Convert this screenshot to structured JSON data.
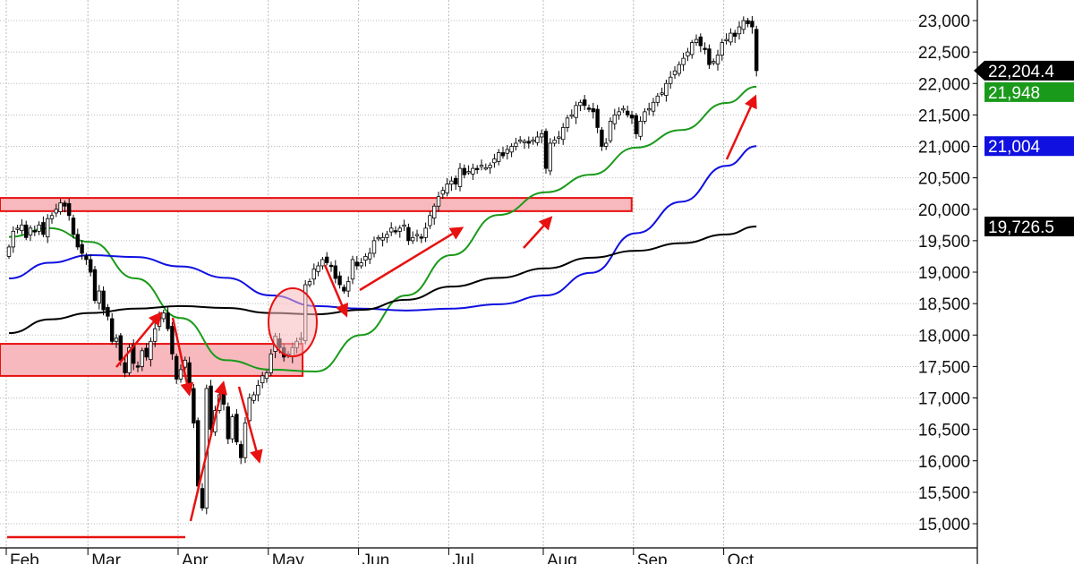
{
  "chart_data": {
    "type": "candlestick",
    "title": "",
    "xlabel": "",
    "ylabel": "",
    "ylim": [
      14800,
      23300
    ],
    "grid": true,
    "y_ticks": [
      "15,000",
      "15,500",
      "16,000",
      "16,500",
      "17,000",
      "17,500",
      "18,000",
      "18,500",
      "19,000",
      "19,500",
      "20,000",
      "20,500",
      "21,000",
      "21,500",
      "22,000",
      "22,500",
      "23,000"
    ],
    "y_tick_values": [
      15000,
      15500,
      16000,
      16500,
      17000,
      17500,
      18000,
      18500,
      19000,
      19500,
      20000,
      20500,
      21000,
      21500,
      22000,
      22500,
      23000
    ],
    "x_tick_labels": [
      "Feb",
      "Mar",
      "Apr",
      "May",
      "Jun",
      "Jul",
      "Aug",
      "Sep",
      "Oct"
    ],
    "closes_by_month": {
      "Feb": [
        19400,
        19650,
        19700,
        19750,
        19550,
        19700,
        19650,
        19750,
        19600,
        19850,
        19900,
        20000,
        20100,
        20050,
        19900,
        19600,
        19400,
        19300,
        19200
      ],
      "Mar": [
        19000,
        18550,
        18700,
        18400,
        18300,
        17900,
        17950,
        17600,
        17400,
        17800,
        17550,
        17500,
        17750,
        17650,
        17900,
        18100,
        18300,
        18350,
        18100,
        17700,
        17300
      ],
      "Apr": [
        17450,
        17600,
        17150,
        16600,
        15600,
        15250,
        17150,
        16500,
        16800,
        17050,
        16900,
        16350,
        16700,
        16300,
        16050,
        16600,
        17000,
        17050,
        17200,
        17350,
        17400
      ],
      "May": [
        17700,
        17980,
        17800,
        17650,
        17700,
        17800,
        17900,
        17950,
        18800,
        18850,
        19050,
        19100,
        19200,
        19150,
        19100,
        18900,
        18800,
        18700,
        18850,
        19200,
        19100
      ],
      "Jun": [
        19150,
        19250,
        19300,
        19500,
        19550,
        19550,
        19600,
        19700,
        19650,
        19700,
        19750,
        19500,
        19550,
        19600,
        19550,
        19700,
        19900,
        20050,
        20200,
        20300,
        20400
      ],
      "Jul": [
        20450,
        20400,
        20650,
        20550,
        20600,
        20650,
        20640,
        20700,
        20660,
        20700,
        20800,
        20900,
        20850,
        20950,
        21000,
        21050,
        21100,
        21080,
        21050,
        21100,
        21150,
        21200
      ],
      "Aug": [
        20650,
        21050,
        21100,
        21150,
        21300,
        21450,
        21500,
        21650,
        21700,
        21650,
        21600,
        21550,
        21300,
        21000,
        21050,
        21400,
        21500,
        21550,
        21600,
        21500,
        21450
      ],
      "Sep": [
        21200,
        21400,
        21550,
        21600,
        21700,
        21800,
        21850,
        22000,
        22100,
        22200,
        22300,
        22400,
        22500,
        22650,
        22700,
        22600,
        22550,
        22300,
        22350,
        22450,
        22650
      ],
      "Oct": [
        22700,
        22800,
        22750,
        22900,
        23000,
        22950,
        22900,
        22204.4
      ]
    },
    "moving_averages": [
      {
        "color": "#1a9a1a",
        "last_label": "21,948",
        "last_value": 21948,
        "values_by_month": {
          "Feb": [
            19560,
            19700
          ],
          "Mar": [
            19480,
            18900
          ],
          "Apr": [
            18270,
            17600
          ],
          "May": [
            17450,
            17420
          ],
          "Jun": [
            18000,
            18630
          ],
          "Jul": [
            19270,
            19910
          ],
          "Aug": [
            20270,
            20550
          ],
          "Sep": [
            20980,
            21260
          ],
          "Oct": [
            21690,
            21948
          ]
        }
      },
      {
        "color": "#1010e0",
        "last_label": "21,004",
        "last_value": 21004,
        "values_by_month": {
          "Feb": [
            18900,
            19150
          ],
          "Mar": [
            19270,
            19240
          ],
          "Apr": [
            19090,
            18910
          ],
          "May": [
            18630,
            18460
          ],
          "Jun": [
            18420,
            18390
          ],
          "Jul": [
            18420,
            18490
          ],
          "Aug": [
            18630,
            18990
          ],
          "Sep": [
            19620,
            20120
          ],
          "Oct": [
            20690,
            21004
          ]
        }
      },
      {
        "color": "#000000",
        "last_label": "19,726.5",
        "last_value": 19726.5,
        "values_by_month": {
          "Feb": [
            18030,
            18250
          ],
          "Mar": [
            18350,
            18420
          ],
          "Apr": [
            18460,
            18430
          ],
          "May": [
            18350,
            18330
          ],
          "Jun": [
            18400,
            18560
          ],
          "Jul": [
            18770,
            18910
          ],
          "Aug": [
            19060,
            19230
          ],
          "Sep": [
            19340,
            19460
          ],
          "Oct": [
            19600,
            19726.5
          ]
        }
      }
    ],
    "last_price_label": "22,204.4",
    "last_price": 22204.4,
    "zones": [
      {
        "from": 19970,
        "to": 20180,
        "end_month": "Aug",
        "end_fraction": 0.95
      },
      {
        "from": 17350,
        "to": 17860,
        "end_month": "May",
        "end_fraction": 0.35
      }
    ],
    "support_line": {
      "value": 14800
    },
    "colors": {
      "annotation": "#e81010",
      "zone_fill": "#f7b9bd",
      "up_candle": "#ffffff",
      "down_candle": "#000000"
    }
  }
}
